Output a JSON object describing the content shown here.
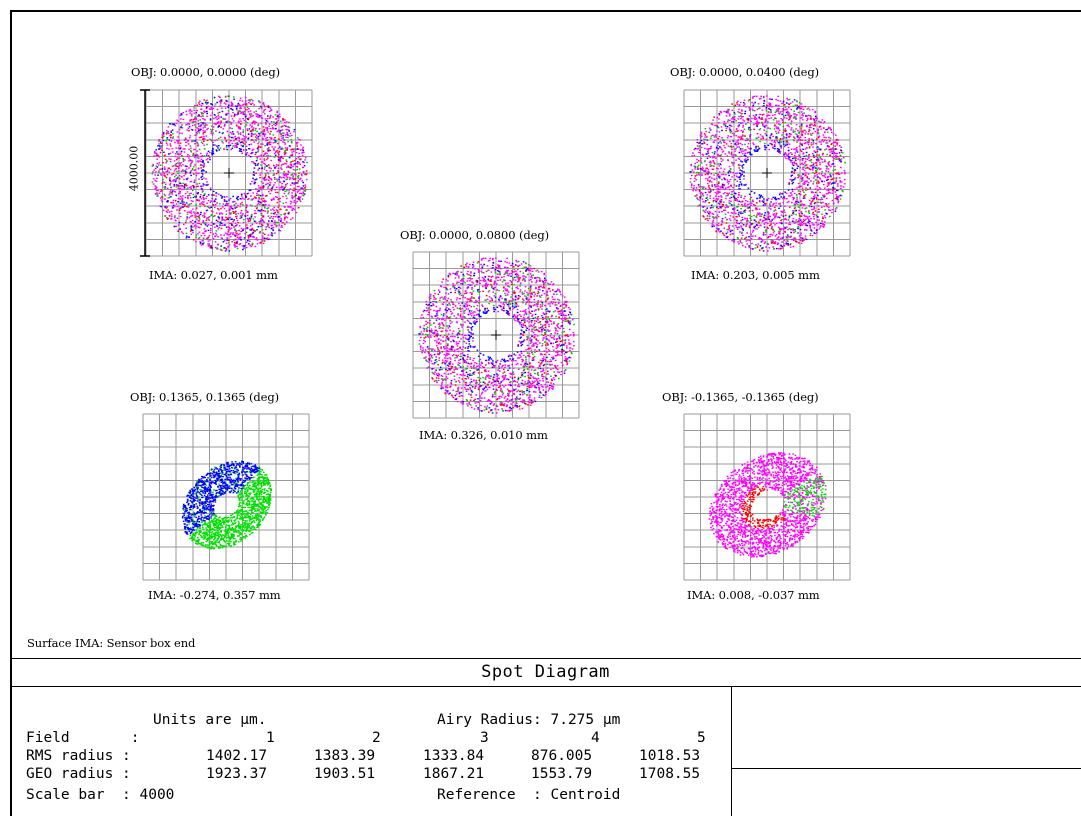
{
  "spots": [
    {
      "obj": "OBJ: 0.0000, 0.0000 (deg)",
      "ima": "IMA: 0.027, 0.001 mm",
      "pattern": "ring",
      "colors": [
        "#ff00ff",
        "#00c000",
        "#ff0000",
        "#0000ff"
      ]
    },
    {
      "obj": "OBJ: 0.0000, 0.0400 (deg)",
      "ima": "IMA: 0.203, 0.005 mm",
      "pattern": "ring",
      "colors": [
        "#ff00ff",
        "#00c000",
        "#ff0000",
        "#0000ff"
      ]
    },
    {
      "obj": "OBJ: 0.0000, 0.0800 (deg)",
      "ima": "IMA: 0.326, 0.010 mm",
      "pattern": "ring",
      "colors": [
        "#ff00ff",
        "#00c000",
        "#ff0000",
        "#0000ff"
      ]
    },
    {
      "obj": "OBJ: 0.1365, 0.1365 (deg)",
      "ima": "IMA: -0.274, 0.357 mm",
      "pattern": "skew-green-blue",
      "colors": [
        "#00dd00",
        "#0000ff"
      ]
    },
    {
      "obj": "OBJ: -0.1365, -0.1365 (deg)",
      "ima": "IMA: 0.008, -0.037 mm",
      "pattern": "skew-magenta-red",
      "colors": [
        "#ff00ff",
        "#ff0000",
        "#00dd00"
      ]
    }
  ],
  "scale_bar_label": "4000.00",
  "surface_label": "Surface IMA: Sensor box end",
  "title": "Spot Diagram",
  "info": {
    "units": "Units are µm.",
    "airy": "Airy Radius: 7.275 µm",
    "field_label": "Field       :",
    "fields": [
      "1",
      "2",
      "3",
      "4",
      "5"
    ],
    "rms_label": "RMS radius :",
    "rms": [
      "1402.17",
      "1383.39",
      "1333.84",
      "876.005",
      "1018.53"
    ],
    "geo_label": "GEO radius :",
    "geo": [
      "1923.37",
      "1903.51",
      "1867.21",
      "1553.79",
      "1708.55"
    ],
    "scale_label": "Scale bar  : 4000",
    "reference": "Reference  : Centroid"
  }
}
